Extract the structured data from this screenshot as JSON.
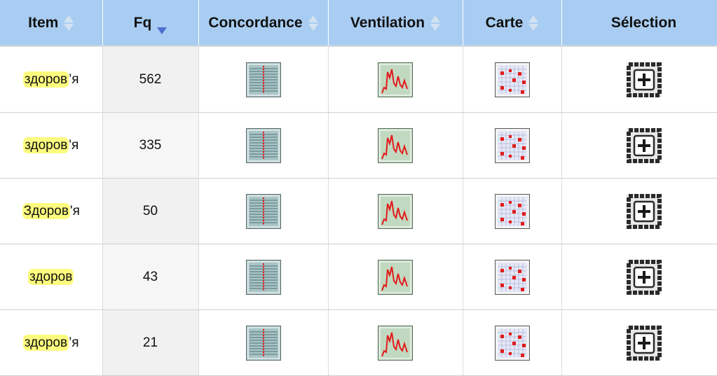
{
  "colors": {
    "header_bg": "#a9cdf2",
    "highlight": "#fcfb7e",
    "sort_active": "#4d6fd0",
    "sort_inactive": "#d3e2f1",
    "fq_cell_bg": "#f1f1f1"
  },
  "headers": [
    {
      "label": "Item",
      "sort": "none"
    },
    {
      "label": "Fq",
      "sort": "desc"
    },
    {
      "label": "Concordance",
      "sort": "none"
    },
    {
      "label": "Ventilation",
      "sort": "none"
    },
    {
      "label": "Carte",
      "sort": "none"
    },
    {
      "label": "Sélection",
      "sort": "none"
    }
  ],
  "rows": [
    {
      "item_match": "здоров",
      "item_rest": "’я",
      "fq": "562"
    },
    {
      "item_match": "здоров",
      "item_rest": "'я",
      "fq": "335"
    },
    {
      "item_match": "Здоров",
      "item_rest": "'я",
      "fq": "50"
    },
    {
      "item_match": "здоров",
      "item_rest": "",
      "fq": "43"
    },
    {
      "item_match": "здоров",
      "item_rest": "’я",
      "fq": "21"
    }
  ],
  "icons": {
    "concordance": "concordance-icon",
    "ventilation": "ventilation-chart-icon",
    "carte": "map-grid-icon",
    "selection": "add-selection-icon"
  }
}
